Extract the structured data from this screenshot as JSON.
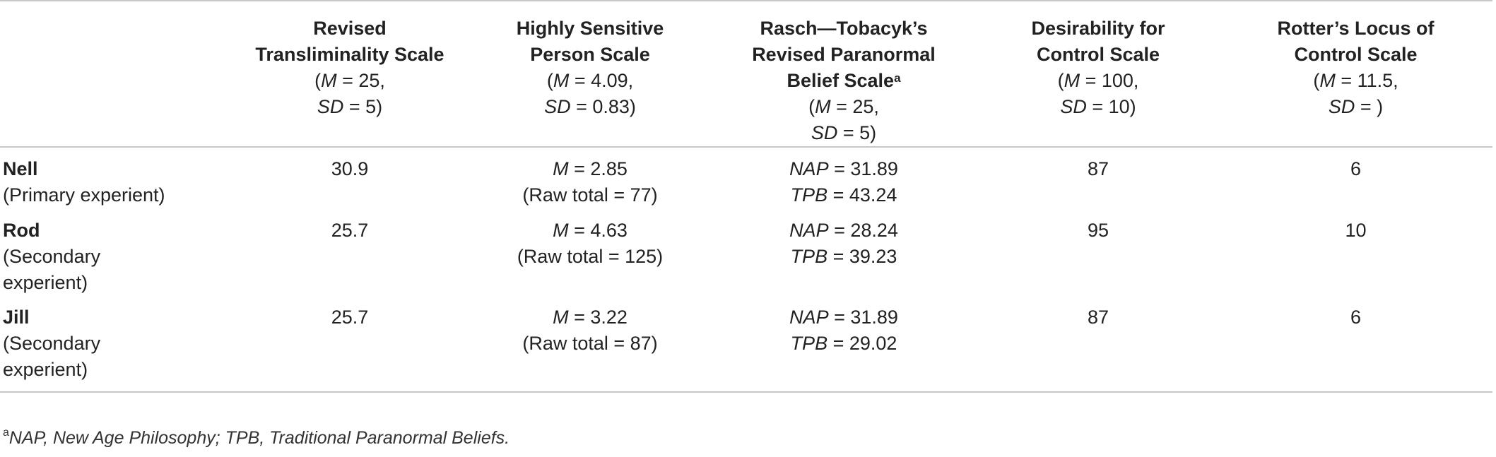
{
  "columns": [
    {
      "title_lines": [
        "Revised",
        "Transliminality Scale"
      ],
      "stat_lines": [
        "(M = 25,",
        "SD = 5)"
      ]
    },
    {
      "title_lines": [
        "Highly Sensitive",
        "Person Scale"
      ],
      "stat_lines": [
        "(M = 4.09,",
        "SD = 0.83)"
      ]
    },
    {
      "title_lines": [
        "Rasch—Tobacyk’s",
        "Revised Paranormal",
        "Belief Scale"
      ],
      "title_sup": "a",
      "stat_lines": [
        "(M = 25,",
        "SD = 5)"
      ]
    },
    {
      "title_lines": [
        "Desirability for",
        "Control Scale"
      ],
      "stat_lines": [
        "(M = 100,",
        "SD = 10)"
      ]
    },
    {
      "title_lines": [
        "Rotter’s Locus of",
        "Control Scale"
      ],
      "stat_lines": [
        "(M = 11.5,",
        "SD = )"
      ]
    }
  ],
  "rows": [
    {
      "name": "Nell",
      "role": "(Primary experient)",
      "transliminality": "30.9",
      "hsp_mean": "M = 2.85",
      "hsp_raw": "(Raw total = 77)",
      "nap": "NAP = 31.89",
      "tpb": "TPB = 43.24",
      "desirability": "87",
      "locus": "6"
    },
    {
      "name": "Rod",
      "role_lines": [
        "(Secondary",
        "experient)"
      ],
      "transliminality": "25.7",
      "hsp_mean": "M = 4.63",
      "hsp_raw": "(Raw total = 125)",
      "nap": "NAP = 28.24",
      "tpb": "TPB = 39.23",
      "desirability": "95",
      "locus": "10"
    },
    {
      "name": "Jill",
      "role_lines": [
        "(Secondary",
        "experient)"
      ],
      "transliminality": "25.7",
      "hsp_mean": "M = 3.22",
      "hsp_raw": "(Raw total = 87)",
      "nap": "NAP = 31.89",
      "tpb": "TPB = 29.02",
      "desirability": "87",
      "locus": "6"
    }
  ],
  "footnote": {
    "marker": "a",
    "text": "NAP, New Age Philosophy; TPB, Traditional Paranormal Beliefs."
  },
  "colors": {
    "rule": "#c8c8c8",
    "text": "#222222"
  }
}
